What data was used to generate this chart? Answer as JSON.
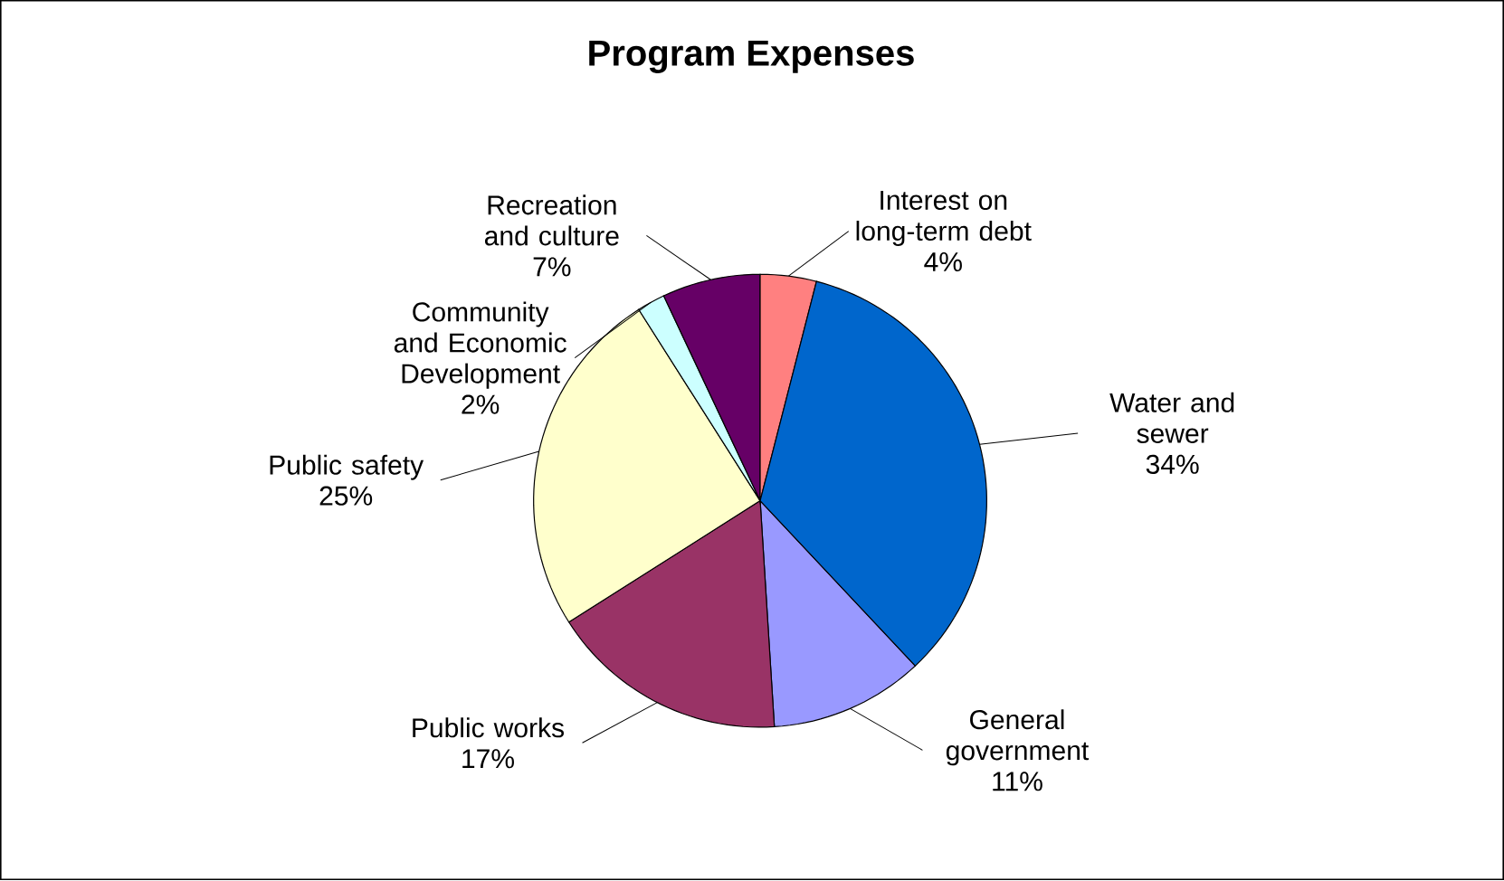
{
  "chart_data": {
    "type": "pie",
    "title": "Program Expenses",
    "categories": [
      "General government",
      "Public works",
      "Public safety",
      "Community and Economic Development",
      "Recreation and culture",
      "Interest on long-term debt",
      "Water and sewer"
    ],
    "values": [
      11,
      17,
      25,
      2,
      7,
      4,
      34
    ],
    "value_labels": [
      "11%",
      "17%",
      "25%",
      "2%",
      "7%",
      "4%",
      "34%"
    ],
    "colors": [
      "#9999ff",
      "#993366",
      "#ffffcc",
      "#ccffff",
      "#660066",
      "#ff8080",
      "#0066cc"
    ]
  }
}
